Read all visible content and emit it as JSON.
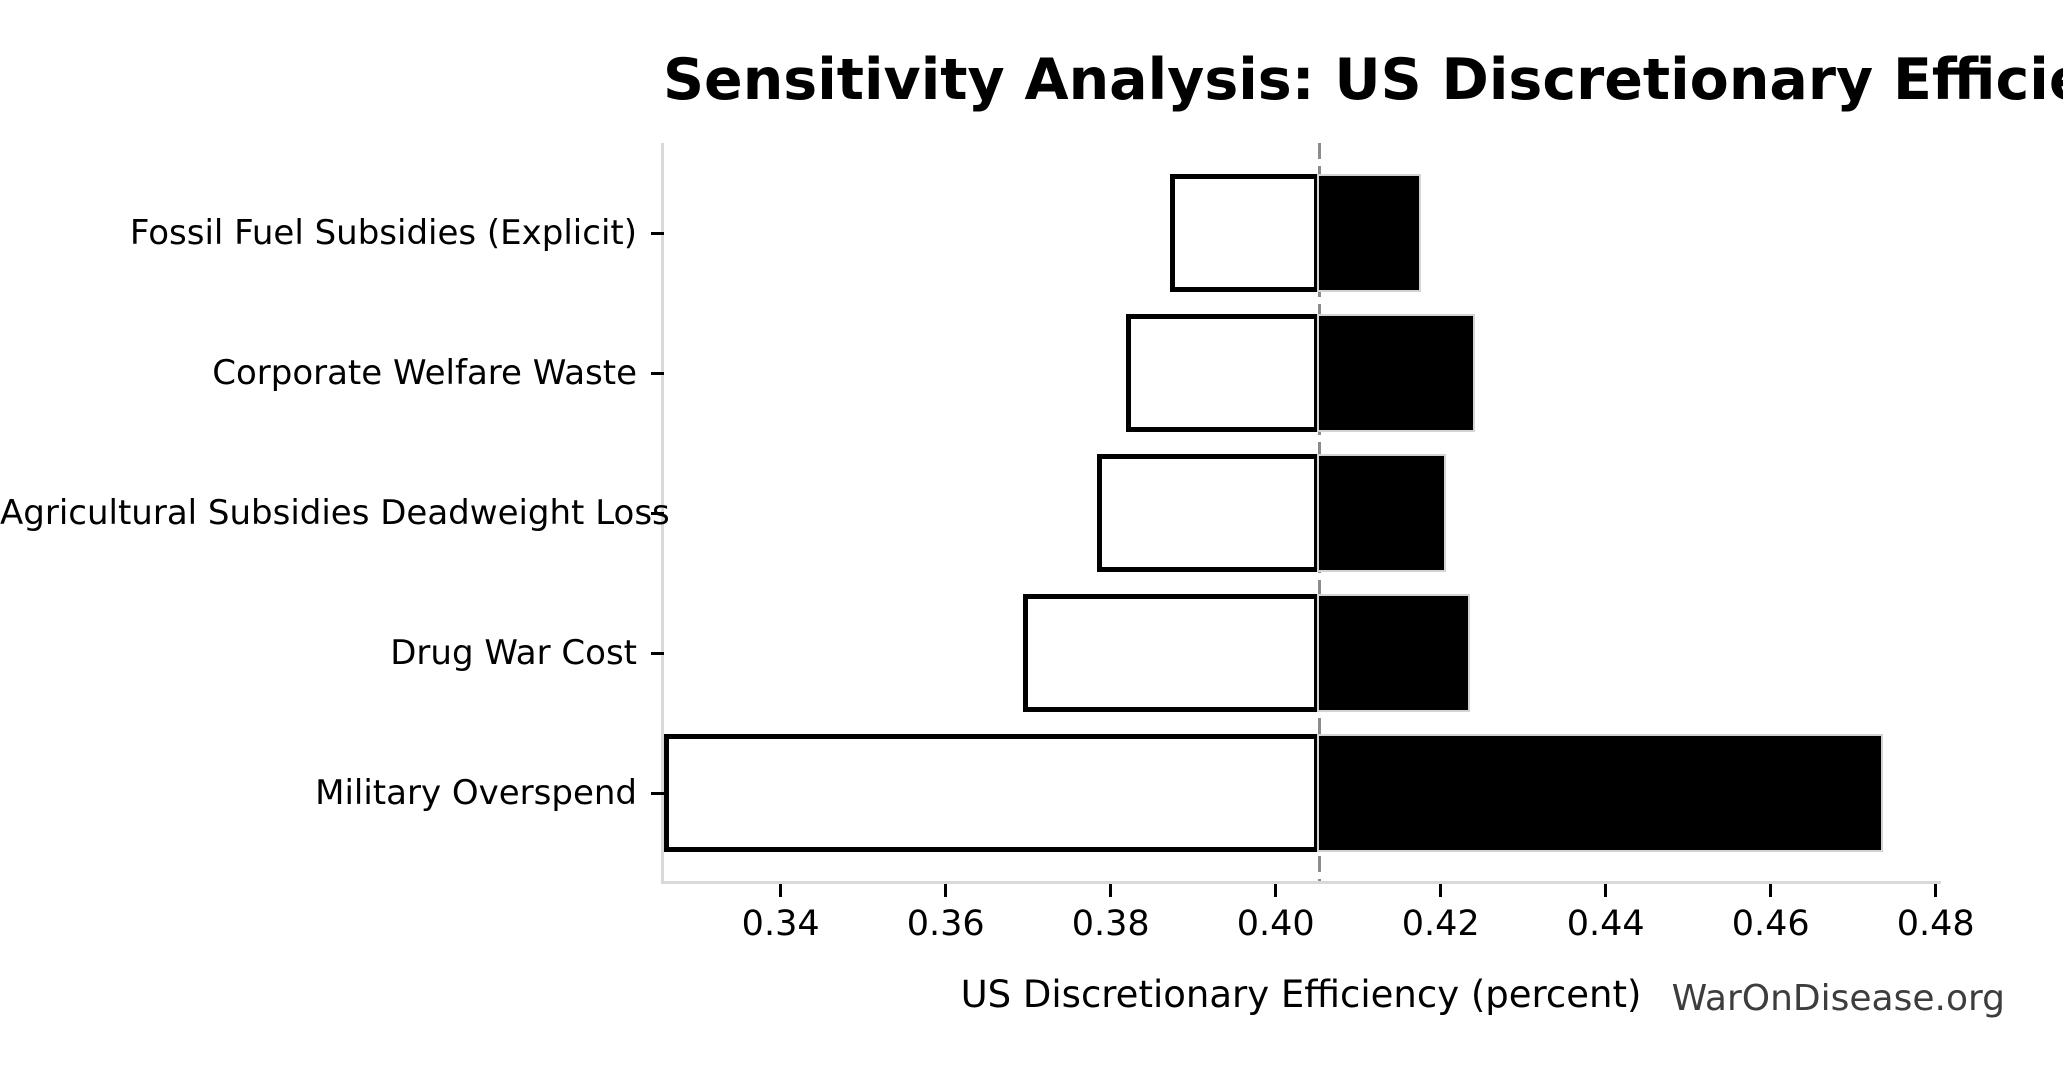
{
  "watermark": "WarOnDisease.org",
  "chart_data": {
    "type": "bar",
    "subtype": "tornado-sensitivity",
    "orientation": "horizontal",
    "title": "Sensitivity Analysis: US Discretionary Efficiency",
    "xlabel": "US Discretionary Efficiency (percent)",
    "ylabel": "",
    "categories": [
      "Fossil Fuel Subsidies (Explicit)",
      "Corporate Welfare Waste",
      "Agricultural Subsidies Deadweight Loss",
      "Drug War Cost",
      "Military Overspend"
    ],
    "bars": [
      {
        "category": "Fossil Fuel Subsidies (Explicit)",
        "low": 0.3875,
        "high": 0.4173
      },
      {
        "category": "Corporate Welfare Waste",
        "low": 0.3822,
        "high": 0.4238
      },
      {
        "category": "Agricultural Subsidies Deadweight Loss",
        "low": 0.3786,
        "high": 0.4204
      },
      {
        "category": "Drug War Cost",
        "low": 0.3697,
        "high": 0.4232
      },
      {
        "category": "Military Overspend",
        "low": 0.3262,
        "high": 0.4733
      }
    ],
    "baseline": 0.4053,
    "xlim": [
      0.3258,
      0.4804
    ],
    "xticks": [
      0.34,
      0.36,
      0.38,
      0.4,
      0.42,
      0.44,
      0.46,
      0.48
    ],
    "xtick_labels": [
      "0.34",
      "0.36",
      "0.38",
      "0.40",
      "0.42",
      "0.44",
      "0.46",
      "0.48"
    ],
    "grid": false,
    "legend": "none",
    "colors": {
      "low_fill": "#ffffff",
      "low_edge": "#000000",
      "high_fill": "#000000",
      "high_edge": "#d3d3d3",
      "baseline_line": "#8c8c8c",
      "spine": "#d9d9d9",
      "text": "#000000",
      "watermark": "#3d3d3d"
    }
  }
}
